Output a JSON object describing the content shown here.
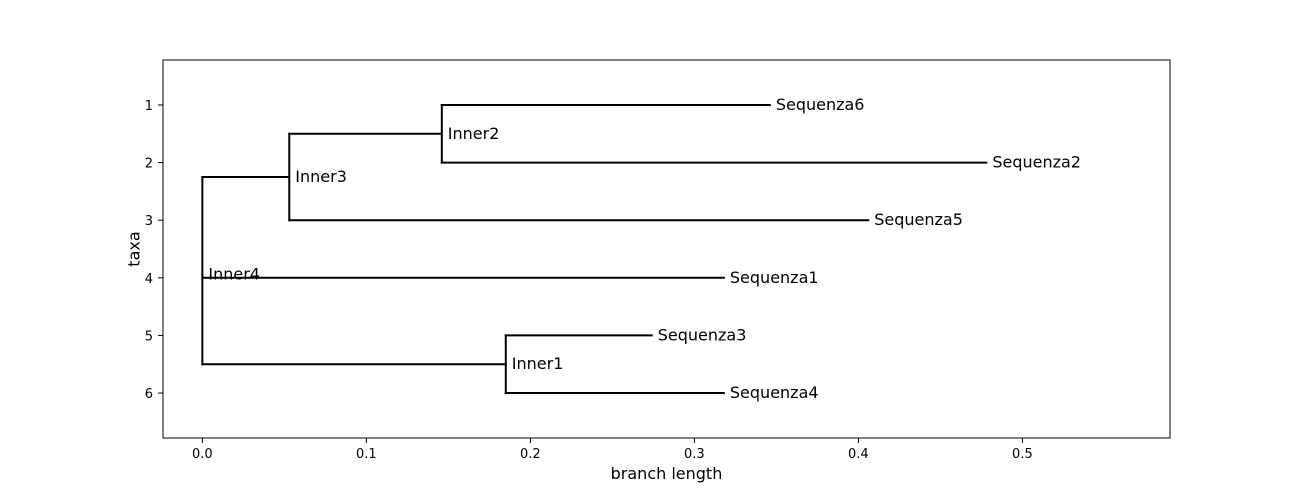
{
  "chart_data": {
    "type": "phylogenetic-tree",
    "xlabel": "branch length",
    "ylabel": "taxa",
    "xlim": [
      -0.024,
      0.59
    ],
    "ylim": [
      6.78,
      0.22
    ],
    "x_ticks": [
      0.0,
      0.1,
      0.2,
      0.3,
      0.4,
      0.5
    ],
    "x_tick_labels": [
      "0.0",
      "0.1",
      "0.2",
      "0.3",
      "0.4",
      "0.5"
    ],
    "y_ticks": [
      1,
      2,
      3,
      4,
      5,
      6
    ],
    "y_tick_labels": [
      "1",
      "2",
      "3",
      "4",
      "5",
      "6"
    ],
    "grid": false,
    "nodes": [
      {
        "name": "Inner4",
        "x": 0.0,
        "y": 3.75,
        "label_y": 3.94
      },
      {
        "name": "Inner3",
        "x": 0.053,
        "y": 2.25
      },
      {
        "name": "Inner2",
        "x": 0.146,
        "y": 1.5
      },
      {
        "name": "Inner1",
        "x": 0.185,
        "y": 5.5
      },
      {
        "name": "Sequenza6",
        "x": 0.346,
        "y": 1
      },
      {
        "name": "Sequenza2",
        "x": 0.478,
        "y": 2
      },
      {
        "name": "Sequenza5",
        "x": 0.406,
        "y": 3
      },
      {
        "name": "Sequenza1",
        "x": 0.318,
        "y": 4
      },
      {
        "name": "Sequenza3",
        "x": 0.274,
        "y": 5
      },
      {
        "name": "Sequenza4",
        "x": 0.318,
        "y": 6
      }
    ],
    "edges": [
      {
        "parent": "Inner4",
        "child": "Inner3"
      },
      {
        "parent": "Inner4",
        "child": "Sequenza1"
      },
      {
        "parent": "Inner4",
        "child": "Inner1"
      },
      {
        "parent": "Inner3",
        "child": "Inner2"
      },
      {
        "parent": "Inner3",
        "child": "Sequenza5"
      },
      {
        "parent": "Inner2",
        "child": "Sequenza6"
      },
      {
        "parent": "Inner2",
        "child": "Sequenza2"
      },
      {
        "parent": "Inner1",
        "child": "Sequenza3"
      },
      {
        "parent": "Inner1",
        "child": "Sequenza4"
      }
    ]
  }
}
